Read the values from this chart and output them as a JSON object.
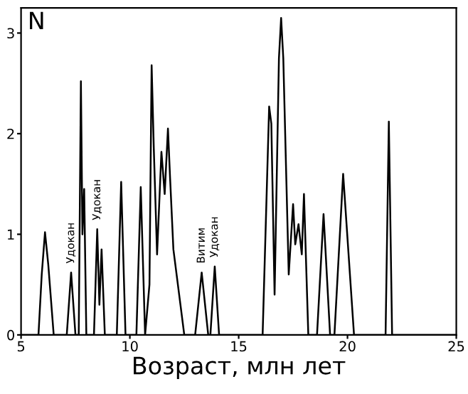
{
  "chart_data": {
    "type": "line",
    "xlabel": "Возраст, млн лет",
    "ylabel": "N",
    "xlim": [
      5,
      25
    ],
    "ylim": [
      0,
      3.25
    ],
    "xticks": [
      5,
      10,
      15,
      20,
      25
    ],
    "yticks": [
      0,
      1,
      2,
      3
    ],
    "grid": false,
    "marker": "none",
    "line_style": "solid",
    "series": [
      {
        "color": "#000000",
        "x": [
          5,
          5.8,
          5.95,
          6.1,
          6.25,
          6.5,
          7.1,
          7.3,
          7.5,
          7.65,
          7.75,
          7.82,
          7.9,
          8.0,
          8.35,
          8.5,
          8.6,
          8.7,
          8.85,
          9.4,
          9.6,
          9.8,
          10.3,
          10.5,
          10.7,
          10.9,
          11.0,
          11.1,
          11.25,
          11.45,
          11.6,
          11.75,
          11.85,
          12.0,
          12.5,
          13.0,
          13.3,
          13.6,
          13.7,
          13.9,
          14.1,
          16.1,
          16.4,
          16.5,
          16.65,
          16.85,
          16.95,
          17.05,
          17.3,
          17.5,
          17.6,
          17.75,
          17.9,
          18.0,
          18.2,
          18.6,
          18.9,
          19.2,
          19.4,
          19.8,
          20.3,
          21.75,
          21.9,
          22.05,
          25
        ],
        "values": [
          0,
          0,
          0.6,
          1.02,
          0.7,
          0,
          0,
          0.62,
          0,
          0,
          2.52,
          1.0,
          1.45,
          0,
          0,
          1.05,
          0.3,
          0.85,
          0,
          0,
          1.52,
          0,
          0,
          1.47,
          0,
          0.5,
          2.68,
          1.85,
          0.8,
          1.82,
          1.4,
          2.05,
          1.55,
          0.85,
          0,
          0,
          0.62,
          0,
          0,
          0.68,
          0,
          0,
          2.27,
          2.1,
          0.4,
          2.75,
          3.15,
          2.75,
          0.6,
          1.3,
          0.9,
          1.1,
          0.8,
          1.4,
          0,
          0,
          1.2,
          0,
          0,
          1.6,
          0,
          0,
          2.12,
          0,
          0
        ]
      }
    ],
    "annotations": [
      {
        "text": "Удокан",
        "x": 7.3,
        "y": 0.65
      },
      {
        "text": "Удокан",
        "x": 8.5,
        "y": 1.08
      },
      {
        "text": "Витим",
        "x": 13.3,
        "y": 0.65
      },
      {
        "text": "Удокан",
        "x": 13.9,
        "y": 0.71
      }
    ]
  }
}
